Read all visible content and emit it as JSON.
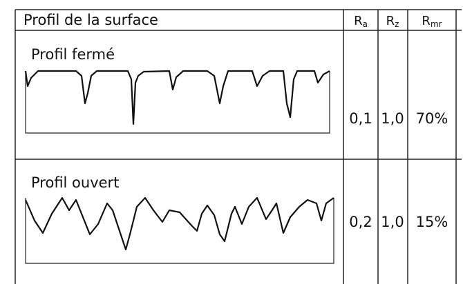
{
  "header": {
    "title": "Profil de la surface",
    "columns": [
      {
        "base": "R",
        "sub": "a"
      },
      {
        "base": "R",
        "sub": "z"
      },
      {
        "base": "R",
        "sub": "mr"
      }
    ]
  },
  "table": {
    "rows": [
      {
        "label": "Profil fermé",
        "cells": [
          "0,1",
          "1,0",
          "70%"
        ]
      },
      {
        "label": "Profil ouvert",
        "cells": [
          "0,2",
          "1,0",
          "15%"
        ]
      }
    ]
  }
}
